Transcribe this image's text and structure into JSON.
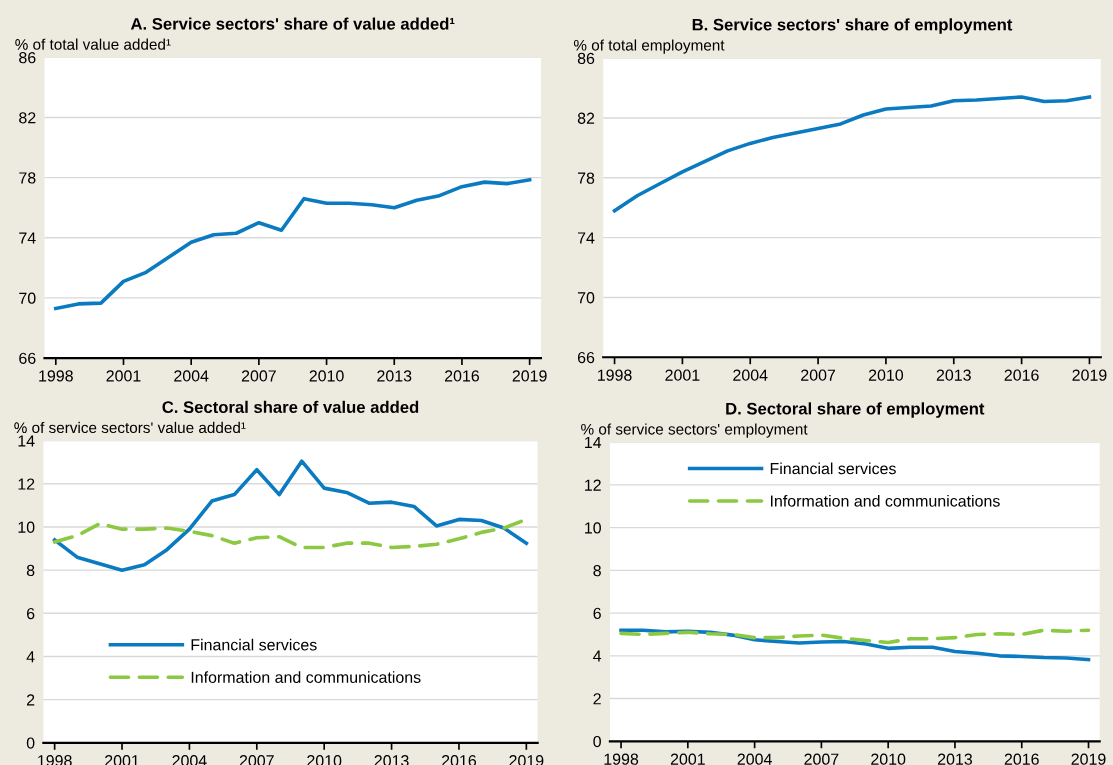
{
  "chart_data": [
    {
      "type": "line",
      "title": "A. Service sectors' share of value added¹",
      "ylabel": "% of total value added¹",
      "x": [
        1998,
        1999,
        2000,
        2001,
        2002,
        2003,
        2004,
        2005,
        2006,
        2007,
        2008,
        2009,
        2010,
        2011,
        2012,
        2013,
        2014,
        2015,
        2016,
        2017,
        2018,
        2019
      ],
      "series": [
        {
          "color": "#0b7bc1",
          "line_style": "solid",
          "values": [
            69.3,
            69.6,
            69.65,
            71.1,
            71.7,
            72.7,
            73.7,
            74.2,
            74.3,
            75.0,
            74.5,
            76.6,
            76.3,
            76.3,
            76.2,
            76.0,
            76.5,
            76.8,
            77.4,
            77.7,
            77.6,
            77.85
          ]
        }
      ],
      "xlim": [
        1997.5,
        2019.5
      ],
      "xticks": [
        1998,
        2001,
        2004,
        2007,
        2010,
        2013,
        2016,
        2019
      ],
      "ylim": [
        66,
        86
      ],
      "yticks": [
        66,
        70,
        74,
        78,
        82,
        86
      ],
      "grid": "y",
      "marker": "none"
    },
    {
      "type": "line",
      "title": "B. Service sectors' share of employment",
      "ylabel": "% of total employment",
      "x": [
        1998,
        1999,
        2000,
        2001,
        2002,
        2003,
        2004,
        2005,
        2006,
        2007,
        2008,
        2009,
        2010,
        2011,
        2012,
        2013,
        2014,
        2015,
        2016,
        2017,
        2018,
        2019
      ],
      "series": [
        {
          "color": "#0b7bc1",
          "line_style": "solid",
          "values": [
            75.8,
            76.8,
            77.6,
            78.4,
            79.1,
            79.8,
            80.3,
            80.7,
            81.0,
            81.3,
            81.6,
            82.2,
            82.6,
            82.7,
            82.8,
            83.15,
            83.2,
            83.3,
            83.4,
            83.1,
            83.15,
            83.4
          ]
        }
      ],
      "xlim": [
        1997.5,
        2019.5
      ],
      "xticks": [
        1998,
        2001,
        2004,
        2007,
        2010,
        2013,
        2016,
        2019
      ],
      "ylim": [
        66,
        86
      ],
      "yticks": [
        66,
        70,
        74,
        78,
        82,
        86
      ],
      "grid": "y",
      "marker": "none"
    },
    {
      "type": "line",
      "title": "C. Sectoral share of value added",
      "ylabel": "% of service sectors' value added¹",
      "x": [
        1998,
        1999,
        2000,
        2001,
        2002,
        2003,
        2004,
        2005,
        2006,
        2007,
        2008,
        2009,
        2010,
        2011,
        2012,
        2013,
        2014,
        2015,
        2016,
        2017,
        2018,
        2019
      ],
      "series": [
        {
          "name": "Financial services",
          "color": "#0b7bc1",
          "line_style": "solid",
          "values": [
            9.4,
            8.6,
            8.3,
            8.0,
            8.25,
            8.95,
            9.9,
            11.2,
            11.5,
            12.65,
            11.5,
            13.05,
            11.8,
            11.6,
            11.1,
            11.15,
            10.95,
            10.05,
            10.35,
            10.3,
            9.95,
            9.25
          ]
        },
        {
          "name": "Information and communications",
          "color": "#8cc841",
          "line_style": "dashed",
          "values": [
            9.3,
            9.6,
            10.15,
            9.9,
            9.9,
            9.95,
            9.8,
            9.6,
            9.25,
            9.5,
            9.55,
            9.05,
            9.05,
            9.25,
            9.25,
            9.05,
            9.1,
            9.2,
            9.45,
            9.75,
            9.95,
            10.35
          ]
        }
      ],
      "xlim": [
        1997.5,
        2019.5
      ],
      "xticks": [
        1998,
        2001,
        2004,
        2007,
        2010,
        2013,
        2016,
        2019
      ],
      "ylim": [
        0,
        14
      ],
      "yticks": [
        0,
        2,
        4,
        6,
        8,
        10,
        12,
        14
      ],
      "grid": "y",
      "marker": "none",
      "legend": "bottom"
    },
    {
      "type": "line",
      "title": "D. Sectoral share of employment",
      "ylabel": "% of service sectors' employment",
      "x": [
        1998,
        1999,
        2000,
        2001,
        2002,
        2003,
        2004,
        2005,
        2006,
        2007,
        2008,
        2009,
        2010,
        2011,
        2012,
        2013,
        2014,
        2015,
        2016,
        2017,
        2018,
        2019
      ],
      "series": [
        {
          "name": "Financial services",
          "color": "#0b7bc1",
          "line_style": "solid",
          "values": [
            5.2,
            5.2,
            5.12,
            5.15,
            5.1,
            4.97,
            4.75,
            4.67,
            4.6,
            4.65,
            4.67,
            4.55,
            4.35,
            4.4,
            4.4,
            4.2,
            4.12,
            4.0,
            3.97,
            3.92,
            3.9,
            3.82
          ]
        },
        {
          "name": "Information and communications",
          "color": "#8cc841",
          "line_style": "dashed",
          "values": [
            5.05,
            5.0,
            5.05,
            5.1,
            5.03,
            5.0,
            4.85,
            4.85,
            4.93,
            4.97,
            4.82,
            4.72,
            4.62,
            4.8,
            4.8,
            4.85,
            5.0,
            5.03,
            5.0,
            5.2,
            5.15,
            5.2
          ]
        }
      ],
      "xlim": [
        1997.5,
        2019.5
      ],
      "xticks": [
        1998,
        2001,
        2004,
        2007,
        2010,
        2013,
        2016,
        2019
      ],
      "ylim": [
        0,
        14
      ],
      "yticks": [
        0,
        2,
        4,
        6,
        8,
        10,
        12,
        14
      ],
      "grid": "y",
      "marker": "none",
      "legend": "top"
    }
  ]
}
